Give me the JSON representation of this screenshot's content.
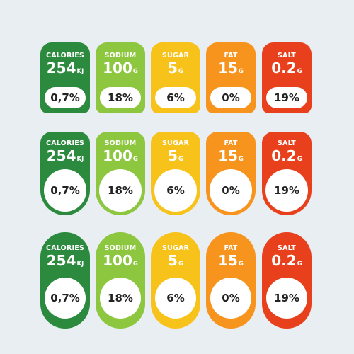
{
  "colors": {
    "background": "#e9eef2",
    "calories": "#2b8a3e",
    "sodium": "#8dc63f",
    "sugar": "#f7c21a",
    "fat": "#f7941d",
    "salt": "#e8401c"
  },
  "nutrients": [
    {
      "name": "CALORIES",
      "value": "254",
      "unit": "KJ",
      "percent": "0,7%"
    },
    {
      "name": "SODIUM",
      "value": "100",
      "unit": "G",
      "percent": "18%"
    },
    {
      "name": "SUGAR",
      "value": "5",
      "unit": "G",
      "percent": "6%"
    },
    {
      "name": "FAT",
      "value": "15",
      "unit": "G",
      "percent": "0%"
    },
    {
      "name": "SALT",
      "value": "0.2",
      "unit": "G",
      "percent": "19%"
    }
  ]
}
